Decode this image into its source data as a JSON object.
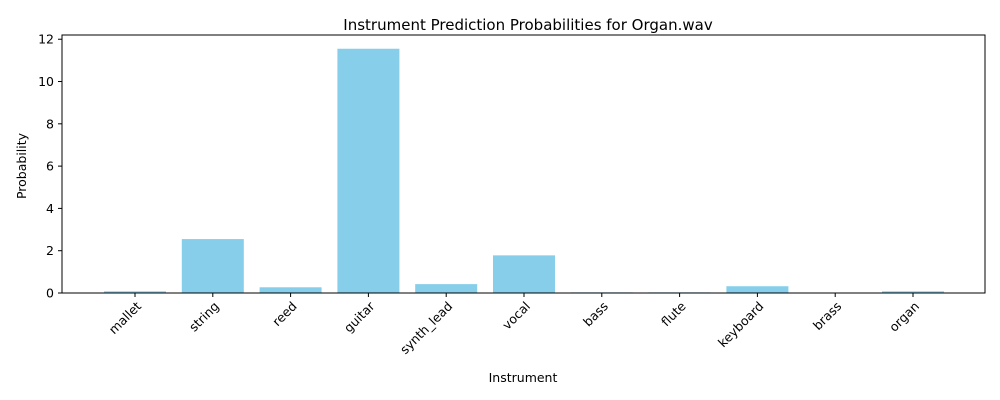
{
  "chart_data": {
    "type": "bar",
    "title": "Instrument Prediction Probabilities for Organ.wav",
    "xlabel": "Instrument",
    "ylabel": "Probability",
    "categories": [
      "mallet",
      "string",
      "reed",
      "guitar",
      "synth_lead",
      "vocal",
      "bass",
      "flute",
      "keyboard",
      "brass",
      "organ"
    ],
    "values": [
      0.08,
      2.55,
      0.27,
      11.55,
      0.42,
      1.78,
      0.03,
      0.03,
      0.32,
      0.01,
      0.08
    ],
    "ylim": [
      0,
      12.2
    ],
    "yticks": [
      0,
      2,
      4,
      6,
      8,
      10,
      12
    ],
    "bar_color": "#87ceeb",
    "grid": false
  }
}
